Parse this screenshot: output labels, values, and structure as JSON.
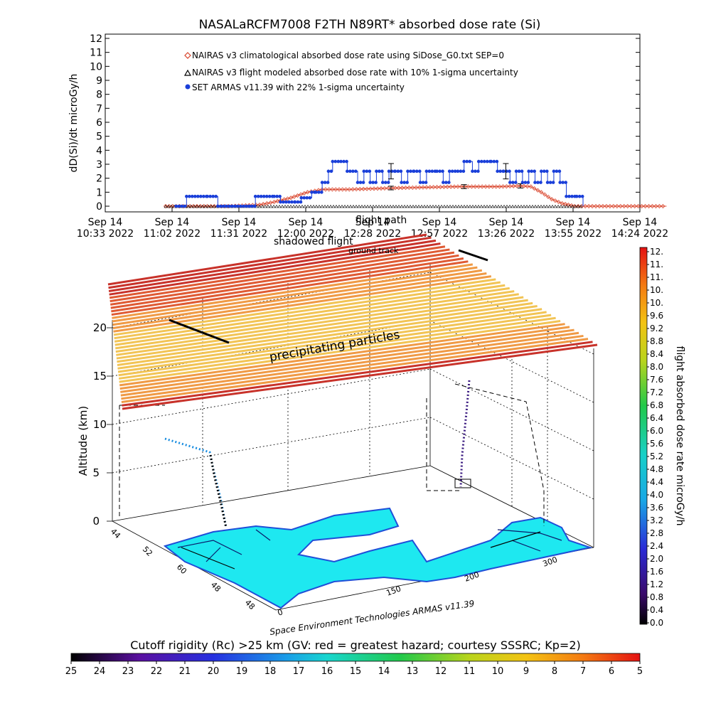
{
  "chart_data": [
    {
      "type": "line",
      "title": "NASALaRCFM7008   F2TH N89RT* absorbed dose rate (Si)",
      "ylabel": "dD(Si)/dt microGy/h",
      "ylim": [
        0,
        12
      ],
      "yticks": [
        0,
        1,
        2,
        3,
        4,
        5,
        6,
        7,
        8,
        9,
        10,
        11,
        12
      ],
      "x_tick_labels": [
        [
          "Sep 14",
          "10:33 2022"
        ],
        [
          "Sep 14",
          "11:02 2022"
        ],
        [
          "Sep 14",
          "11:31 2022"
        ],
        [
          "Sep 14",
          "12:00 2022"
        ],
        [
          "Sep 14",
          "12:28 2022"
        ],
        [
          "Sep 14",
          "12:57 2022"
        ],
        [
          "Sep 14",
          "13:26 2022"
        ],
        [
          "Sep 14",
          "13:55 2022"
        ],
        [
          "Sep 14",
          "14:24 2022"
        ]
      ],
      "xlim": [
        633,
        864
      ],
      "series": [
        {
          "name": "NAIRAS v3 climatological absorbed dose rate using SiDose_G0.txt SEP=0",
          "color": "#d9442b",
          "marker": "diamond",
          "points": [
            [
              660,
              0
            ],
            [
              690,
              0
            ],
            [
              705,
              0.1
            ],
            [
              712,
              0.3
            ],
            [
              720,
              0.6
            ],
            [
              728,
              1.0
            ],
            [
              735,
              1.2
            ],
            [
              748,
              1.2
            ],
            [
              770,
              1.3
            ],
            [
              800,
              1.4
            ],
            [
              820,
              1.4
            ],
            [
              830,
              1.45
            ],
            [
              835,
              1.4
            ],
            [
              840,
              1.0
            ],
            [
              845,
              0.5
            ],
            [
              850,
              0.2
            ],
            [
              856,
              0
            ],
            [
              900,
              0
            ]
          ]
        },
        {
          "name": "NAIRAS v3 flight modeled absorbed dose rate with 10% 1-sigma uncertainty",
          "color": "#000000",
          "marker": "triangle",
          "error_bars": [
            [
              768,
              1.3,
              0.13
            ],
            [
              803,
              1.4,
              0.14
            ],
            [
              830,
              1.45,
              0.15
            ]
          ]
        },
        {
          "name": "SET ARMAS v11.39 with 22% 1-sigma uncertainty",
          "color": "#1a3fd9",
          "marker": "dot",
          "points": [
            [
              665,
              0
            ],
            [
              670,
              0.7
            ],
            [
              680,
              0.7
            ],
            [
              685,
              0
            ],
            [
              700,
              0
            ],
            [
              703,
              0.7
            ],
            [
              712,
              0.7
            ],
            [
              715,
              0.3
            ],
            [
              722,
              0.3
            ],
            [
              725,
              0.6
            ],
            [
              730,
              1.0
            ],
            [
              732,
              1.0
            ],
            [
              735,
              1.7
            ],
            [
              738,
              2.5
            ],
            [
              740,
              3.2
            ],
            [
              744,
              3.2
            ],
            [
              747,
              2.5
            ],
            [
              752,
              1.7
            ],
            [
              755,
              2.5
            ],
            [
              758,
              1.7
            ],
            [
              761,
              2.5
            ],
            [
              764,
              1.7
            ],
            [
              767,
              2.5
            ],
            [
              770,
              2.5
            ],
            [
              773,
              1.7
            ],
            [
              776,
              2.5
            ],
            [
              779,
              2.5
            ],
            [
              782,
              1.7
            ],
            [
              785,
              2.5
            ],
            [
              790,
              2.5
            ],
            [
              793,
              1.7
            ],
            [
              796,
              2.5
            ],
            [
              800,
              2.5
            ],
            [
              803,
              3.2
            ],
            [
              807,
              2.5
            ],
            [
              810,
              3.2
            ],
            [
              816,
              3.2
            ],
            [
              819,
              2.5
            ],
            [
              822,
              2.5
            ],
            [
              825,
              1.7
            ],
            [
              828,
              2.5
            ],
            [
              831,
              1.7
            ],
            [
              834,
              2.5
            ],
            [
              837,
              1.7
            ],
            [
              840,
              2.5
            ],
            [
              843,
              1.7
            ],
            [
              846,
              2.5
            ],
            [
              849,
              1.7
            ],
            [
              852,
              0.7
            ],
            [
              857,
              0.7
            ],
            [
              860,
              0
            ]
          ],
          "error_bars": [
            [
              768,
              2.5,
              0.55
            ],
            [
              823,
              2.5,
              0.55
            ]
          ]
        }
      ]
    },
    {
      "type": "scatter",
      "ylabel": "Altitude (km)",
      "zticks": [
        0,
        5,
        10,
        15,
        20
      ],
      "curtain_labels": [
        "flight path",
        "shadowed flight",
        "ground track"
      ],
      "annotation": "precipitating particles",
      "map_x_ticks": [
        "0",
        "150",
        "200",
        "300"
      ],
      "map_y_ticks": [
        "44",
        "52",
        "60",
        "48",
        "48"
      ],
      "credit": "Space Environment Technologies ARMAS v11.39",
      "colorbar": {
        "label": "flight absorbed dose rate microGy/h",
        "ticks": [
          "12.",
          "11.",
          "11.",
          "10.",
          "10.",
          "9.6",
          "9.2",
          "8.8",
          "8.4",
          "8.0",
          "7.6",
          "7.2",
          "6.8",
          "6.4",
          "6.0",
          "5.6",
          "5.2",
          "4.8",
          "4.4",
          "4.0",
          "3.6",
          "3.2",
          "2.8",
          "2.4",
          "2.0",
          "1.6",
          "1.2",
          "0.8",
          "0.4",
          "0.0"
        ]
      }
    },
    {
      "type": "heatmap",
      "title": "Cutoff rigidity (Rc) >25 km (GV: red = greatest hazard; courtesy SSSRC; Kp=2)",
      "ticks": [
        "25",
        "24",
        "23",
        "22",
        "21",
        "20",
        "19",
        "18",
        "17",
        "16",
        "15",
        "14",
        "13",
        "12",
        "11",
        "10",
        "9",
        "8",
        "7",
        "6",
        "5"
      ]
    }
  ]
}
